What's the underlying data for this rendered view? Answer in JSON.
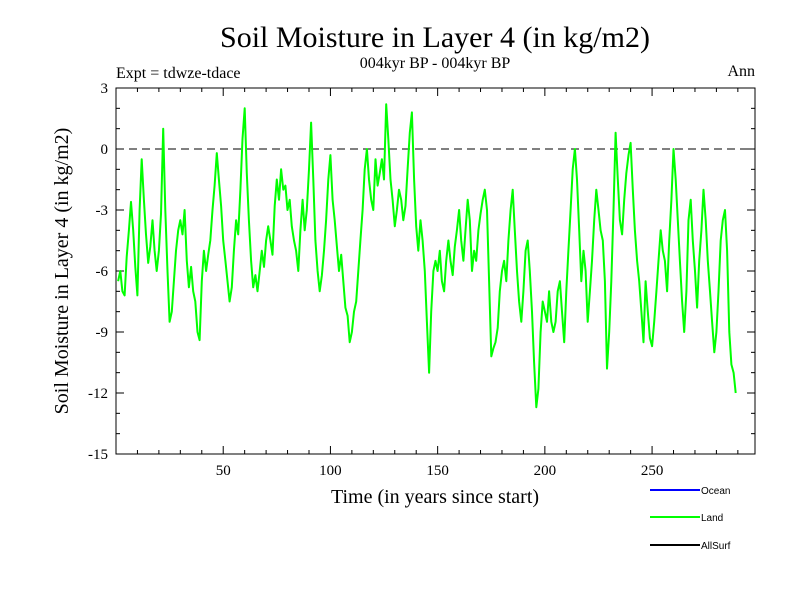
{
  "chart_data": {
    "type": "line",
    "title": "Soil Moisture in Layer 4 (in kg/m2)",
    "subtitle": "004kyr BP - 004kyr BP",
    "expt_label": "Expt = tdwze-tdace",
    "period_label": "Ann",
    "xlabel": "Time (in years since start)",
    "ylabel": "Soil Moisture in Layer 4 (in kg/m2)",
    "xlim": [
      0,
      298
    ],
    "ylim": [
      -15,
      3
    ],
    "x_ticks": [
      50,
      100,
      150,
      200,
      250
    ],
    "x_tick_labels": [
      "50",
      "100",
      "150",
      "200",
      "250"
    ],
    "y_ticks": [
      3,
      0,
      -3,
      -6,
      -9,
      -12,
      -15
    ],
    "y_tick_labels": [
      "3",
      "0",
      "-3",
      "-6",
      "-9",
      "-12",
      "-15"
    ],
    "reference_line": 0,
    "legend": [
      {
        "name": "Ocean",
        "color": "#0000ff"
      },
      {
        "name": "Land",
        "color": "#00ff00"
      },
      {
        "name": "AllSurf",
        "color": "#000000"
      }
    ],
    "series": [
      {
        "name": "Land",
        "color": "#00ff00",
        "x_start": 1,
        "x_step": 1,
        "values": [
          -6.5,
          -6.0,
          -7.0,
          -7.2,
          -5.3,
          -4.0,
          -2.6,
          -4.0,
          -5.8,
          -7.2,
          -3.0,
          -0.5,
          -2.5,
          -4.2,
          -5.6,
          -4.8,
          -3.5,
          -5.0,
          -6.0,
          -5.0,
          -3.2,
          1.0,
          -3.0,
          -6.0,
          -8.5,
          -8.0,
          -6.5,
          -5.0,
          -4.0,
          -3.5,
          -4.2,
          -3.0,
          -5.5,
          -6.8,
          -5.8,
          -7.0,
          -7.5,
          -9.0,
          -9.4,
          -6.5,
          -5.0,
          -6.0,
          -5.2,
          -4.5,
          -3.0,
          -1.8,
          -0.2,
          -1.5,
          -2.8,
          -4.5,
          -5.5,
          -6.5,
          -7.5,
          -6.8,
          -5.0,
          -3.5,
          -4.2,
          -2.0,
          0.5,
          2.0,
          -1.2,
          -3.5,
          -5.5,
          -6.8,
          -6.2,
          -7.0,
          -6.0,
          -5.0,
          -5.8,
          -4.5,
          -3.8,
          -4.5,
          -5.2,
          -2.8,
          -1.5,
          -2.5,
          -1.0,
          -2.0,
          -1.8,
          -3.0,
          -2.5,
          -3.8,
          -4.5,
          -5.0,
          -6.0,
          -4.0,
          -2.5,
          -4.0,
          -3.0,
          -1.0,
          1.3,
          -1.5,
          -4.5,
          -6.0,
          -7.0,
          -6.2,
          -5.0,
          -3.5,
          -1.5,
          -0.3,
          -2.5,
          -3.5,
          -4.8,
          -6.0,
          -5.2,
          -6.5,
          -7.8,
          -8.2,
          -9.5,
          -9.0,
          -8.0,
          -7.5,
          -6.0,
          -4.5,
          -3.0,
          -1.0,
          0.0,
          -1.5,
          -2.5,
          -3.0,
          -0.5,
          -1.8,
          -1.2,
          -0.5,
          -1.5,
          2.2,
          0.5,
          -1.5,
          -2.5,
          -3.8,
          -3.0,
          -2.0,
          -2.5,
          -3.5,
          -2.8,
          -1.0,
          0.8,
          1.8,
          -1.5,
          -3.8,
          -5.0,
          -3.5,
          -4.5,
          -6.0,
          -8.5,
          -11.0,
          -8.0,
          -6.0,
          -5.5,
          -6.0,
          -5.0,
          -6.5,
          -7.0,
          -5.5,
          -4.5,
          -5.5,
          -6.2,
          -4.8,
          -4.0,
          -3.0,
          -4.5,
          -5.5,
          -4.0,
          -2.5,
          -3.5,
          -6.0,
          -5.0,
          -5.5,
          -4.0,
          -3.2,
          -2.5,
          -2.0,
          -3.0,
          -6.5,
          -10.2,
          -9.8,
          -9.5,
          -8.8,
          -7.0,
          -6.0,
          -5.5,
          -6.5,
          -4.5,
          -3.0,
          -2.0,
          -4.0,
          -6.0,
          -7.5,
          -8.5,
          -7.0,
          -5.0,
          -4.5,
          -6.0,
          -8.0,
          -10.5,
          -12.7,
          -11.8,
          -9.0,
          -7.5,
          -8.0,
          -8.5,
          -7.0,
          -8.5,
          -9.0,
          -8.5,
          -7.0,
          -6.5,
          -8.0,
          -9.5,
          -7.0,
          -5.0,
          -3.0,
          -1.0,
          0.0,
          -1.5,
          -4.0,
          -6.5,
          -5.0,
          -6.0,
          -8.5,
          -7.0,
          -5.5,
          -3.5,
          -2.0,
          -3.0,
          -4.0,
          -4.5,
          -6.5,
          -10.8,
          -9.0,
          -6.5,
          -3.0,
          0.8,
          -1.5,
          -3.5,
          -4.2,
          -2.5,
          -1.2,
          -0.3,
          0.3,
          -2.0,
          -4.0,
          -5.5,
          -6.5,
          -8.0,
          -9.5,
          -6.5,
          -8.0,
          -9.3,
          -9.7,
          -8.5,
          -7.0,
          -5.5,
          -4.0,
          -5.0,
          -5.5,
          -7.0,
          -4.5,
          -2.5,
          0.0,
          -1.5,
          -3.5,
          -5.5,
          -7.5,
          -9.0,
          -7.0,
          -3.5,
          -2.5,
          -4.5,
          -6.0,
          -7.8,
          -5.5,
          -4.0,
          -2.0,
          -3.5,
          -5.5,
          -7.0,
          -8.5,
          -10.0,
          -9.0,
          -7.0,
          -4.5,
          -3.5,
          -3.0,
          -5.0,
          -9.0,
          -10.6,
          -11.0,
          -12.0
        ]
      }
    ]
  }
}
